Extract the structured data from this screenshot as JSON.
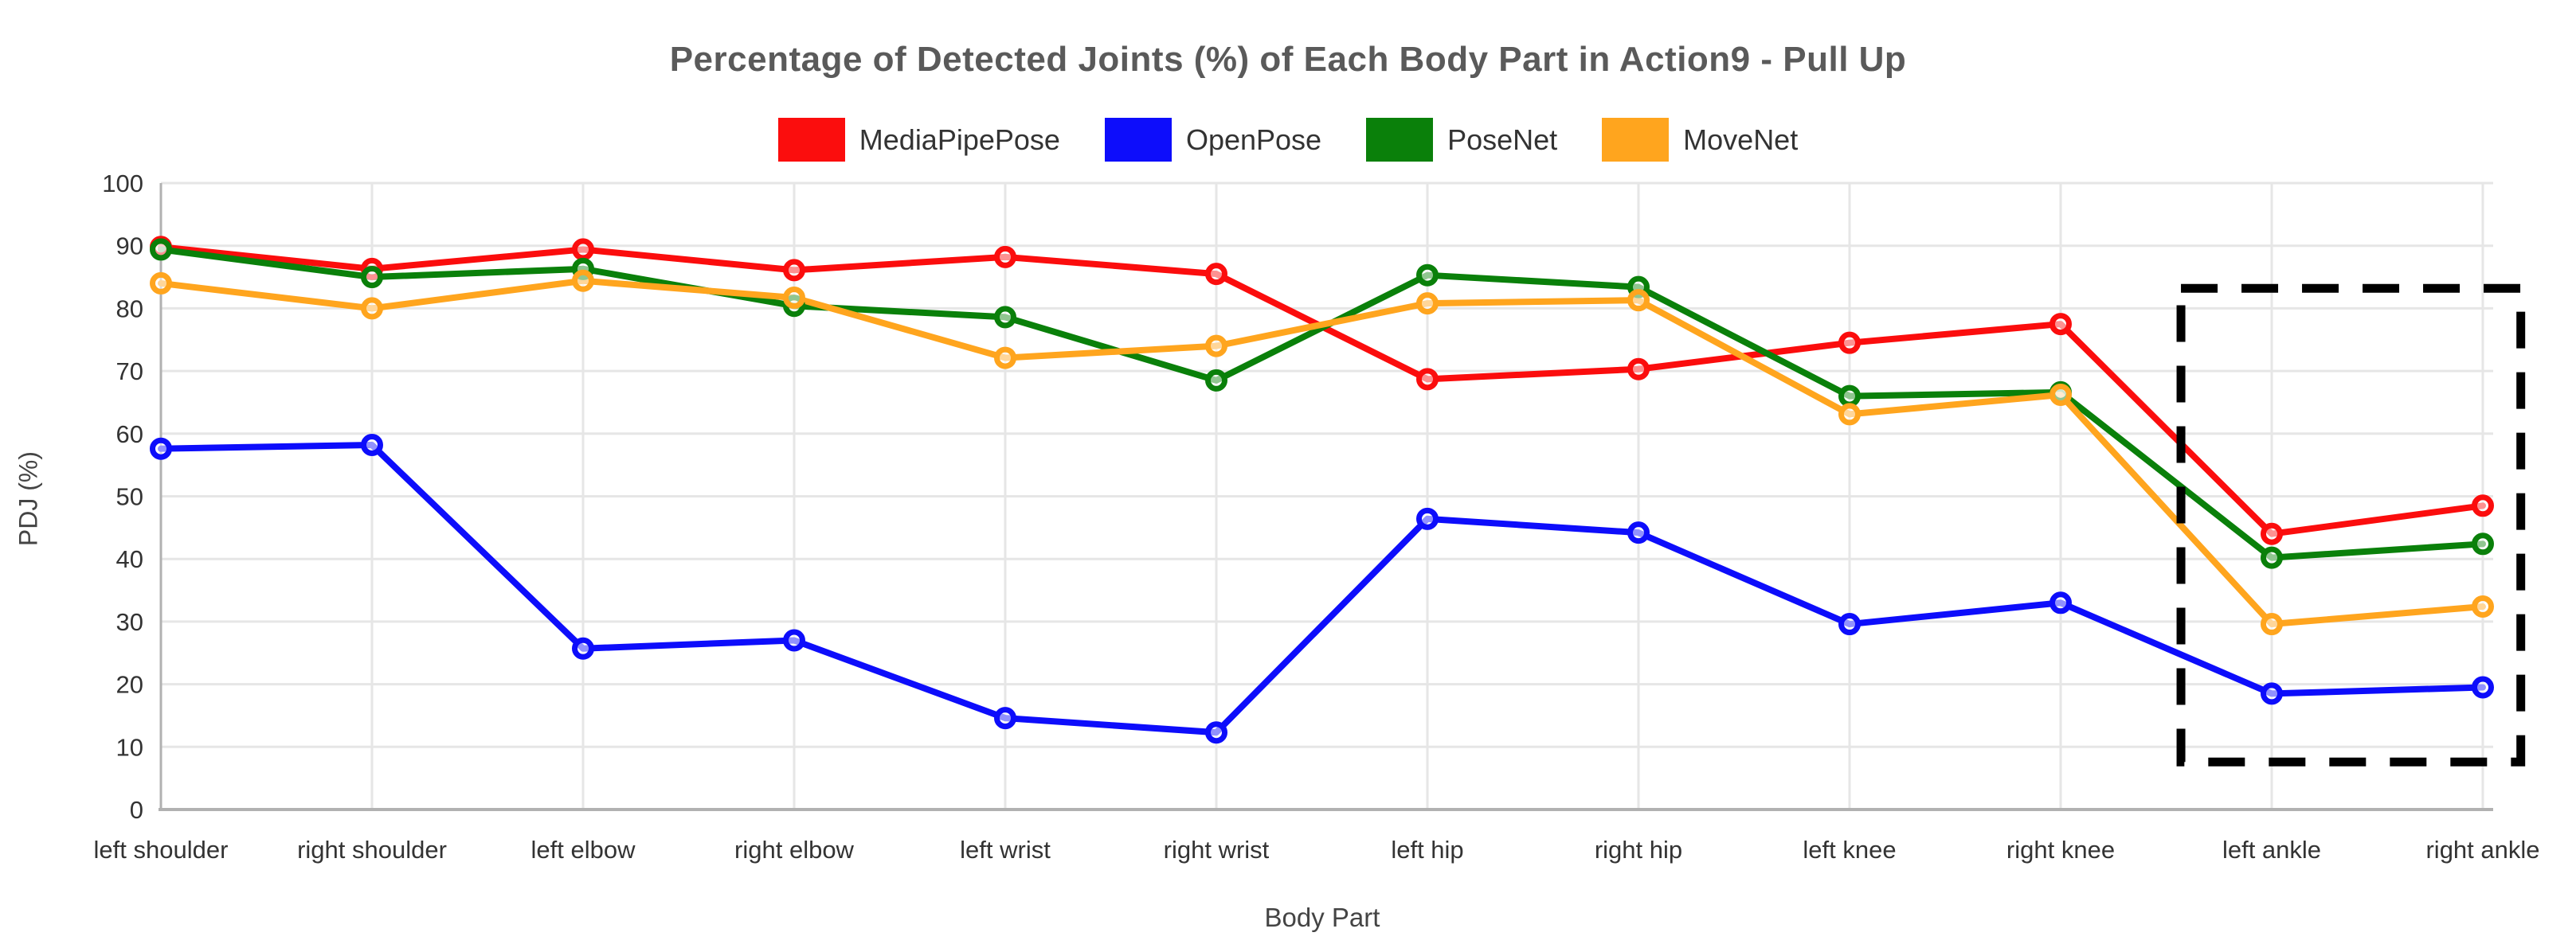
{
  "chart_data": {
    "type": "line",
    "title": "Percentage of Detected Joints (%) of Each Body Part in Action9 - Pull Up",
    "xlabel": "Body Part",
    "ylabel": "PDJ (%)",
    "ylim": [
      0,
      100
    ],
    "ytick_step": 10,
    "ytick_labels": [
      "0",
      "10",
      "20",
      "30",
      "40",
      "50",
      "60",
      "70",
      "80",
      "90",
      "100"
    ],
    "grid": true,
    "legend_position": "top",
    "categories": [
      "left shoulder",
      "right shoulder",
      "left elbow",
      "right elbow",
      "left wrist",
      "right wrist",
      "left hip",
      "right hip",
      "left knee",
      "right knee",
      "left ankle",
      "right ankle"
    ],
    "series": [
      {
        "name": "MediaPipePose",
        "color": "#FB0D0D",
        "values": [
          89.8,
          86.3,
          89.4,
          86.1,
          88.2,
          85.5,
          68.7,
          70.3,
          74.5,
          77.5,
          44.0,
          48.5
        ]
      },
      {
        "name": "OpenPose",
        "color": "#0D0DFB",
        "values": [
          57.6,
          58.2,
          25.7,
          27.0,
          14.6,
          12.3,
          46.4,
          44.2,
          29.6,
          33.0,
          18.5,
          19.5
        ]
      },
      {
        "name": "PoseNet",
        "color": "#0A800A",
        "values": [
          89.4,
          85.0,
          86.3,
          80.4,
          78.6,
          68.5,
          85.3,
          83.4,
          66.0,
          66.6,
          40.2,
          42.4
        ]
      },
      {
        "name": "MoveNet",
        "color": "#FFA51E",
        "values": [
          84.0,
          80.0,
          84.4,
          81.7,
          72.1,
          74.0,
          80.8,
          81.3,
          63.1,
          66.2,
          29.6,
          32.4
        ]
      }
    ],
    "annotation": {
      "type": "dashed_box",
      "x0_index": 9.57,
      "x1_index": 11.18,
      "y0": 7.6,
      "y1": 83.2,
      "color": "#000000"
    }
  },
  "colors": {
    "background": "#FFFFFF",
    "grid": "#E6E6E6",
    "axis": "#B1B1B1",
    "title_text": "#5A5A5A",
    "tick_text": "#333333",
    "axis_title_text": "#444444",
    "legend_text": "#333333"
  }
}
